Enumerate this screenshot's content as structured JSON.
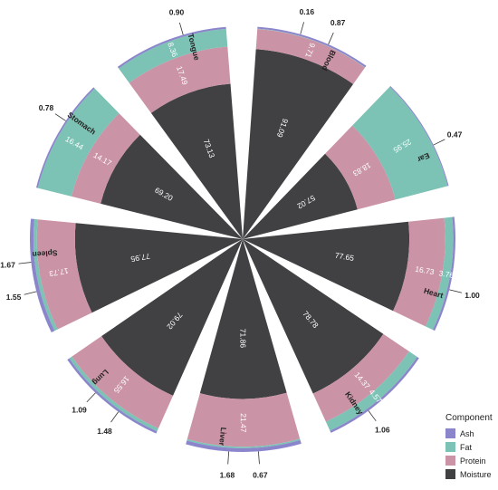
{
  "chart_data": {
    "type": "radial-stacked-bar",
    "title": "",
    "order_inner_to_outer": [
      "Moisture",
      "Protein",
      "Fat",
      "Ash"
    ],
    "components": [
      {
        "name": "Ash",
        "color": "#8b86cc"
      },
      {
        "name": "Fat",
        "color": "#7cc2b5"
      },
      {
        "name": "Protein",
        "color": "#cb93a6"
      },
      {
        "name": "Moisture",
        "color": "#414043"
      }
    ],
    "categories": [
      {
        "name": "Blood",
        "Moisture": 91.09,
        "Protein": 9.71,
        "Fat": 0.16,
        "Ash": 0.87
      },
      {
        "name": "Ear",
        "Moisture": 57.02,
        "Protein": 18.83,
        "Fat": 25.95,
        "Ash": 0.47
      },
      {
        "name": "Heart",
        "Moisture": 77.65,
        "Protein": 16.73,
        "Fat": 3.76,
        "Ash": 1.0
      },
      {
        "name": "Kidney",
        "Moisture": 78.78,
        "Protein": 14.37,
        "Fat": 4.57,
        "Ash": 1.06
      },
      {
        "name": "Liver",
        "Moisture": 71.86,
        "Protein": 21.47,
        "Fat": 0.67,
        "Ash": 1.68
      },
      {
        "name": "Lung",
        "Moisture": 79.02,
        "Protein": 16.55,
        "Fat": 1.48,
        "Ash": 1.09
      },
      {
        "name": "Spleen",
        "Moisture": 77.95,
        "Protein": 17.73,
        "Fat": 1.55,
        "Ash": 1.67
      },
      {
        "name": "Stomach",
        "Moisture": 69.2,
        "Protein": 14.17,
        "Fat": 16.44,
        "Ash": 0.78
      },
      {
        "name": "Tongue",
        "Moisture": 73.13,
        "Protein": 17.49,
        "Fat": 8.36,
        "Ash": 0.9
      }
    ],
    "labels": {
      "Blood": {
        "Moisture": "91.09",
        "Protein": "9.71",
        "Fat": "0.16",
        "Ash": "0.87"
      },
      "Ear": {
        "Moisture": "57.02",
        "Protein": "18.83",
        "Fat": "25.95",
        "Ash": "0.47"
      },
      "Heart": {
        "Moisture": "77.65",
        "Protein": "16.73",
        "Fat": "3.76",
        "Ash": "1.00"
      },
      "Kidney": {
        "Moisture": "78.78",
        "Protein": "14.37",
        "Fat": "4.57",
        "Ash": "1.06"
      },
      "Liver": {
        "Moisture": "71.86",
        "Protein": "21.47",
        "Fat": "0.67",
        "Ash": "1.68"
      },
      "Lung": {
        "Moisture": "79.02",
        "Protein": "16.55",
        "Fat": "1.48",
        "Ash": "1.09"
      },
      "Spleen": {
        "Moisture": "77.95",
        "Protein": "17.73",
        "Fat": "1.55",
        "Ash": "1.67"
      },
      "Stomach": {
        "Moisture": "69.20",
        "Protein": "14.17",
        "Fat": "16.44",
        "Ash": "0.78"
      },
      "Tongue": {
        "Moisture": "73.13",
        "Protein": "17.49",
        "Fat": "8.36",
        "Ash": "0.90"
      }
    },
    "radial_range": [
      0,
      100
    ]
  },
  "legend": {
    "title": "Component",
    "items": [
      {
        "label": "Ash",
        "color": "#8b86cc"
      },
      {
        "label": "Fat",
        "color": "#7cc2b5"
      },
      {
        "label": "Protein",
        "color": "#cb93a6"
      },
      {
        "label": "Moisture",
        "color": "#414043"
      }
    ]
  }
}
